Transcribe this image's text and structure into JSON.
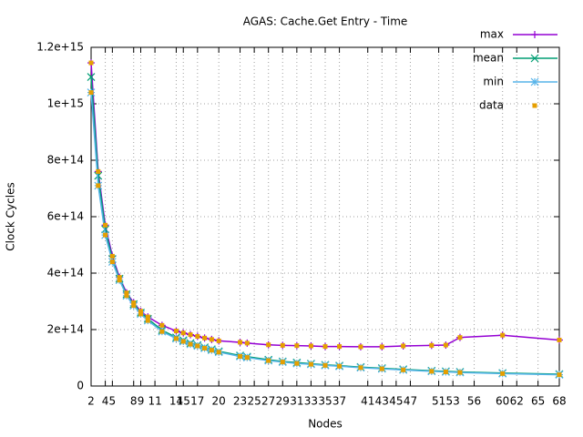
{
  "chart_data": {
    "type": "line",
    "title": "AGAS: Cache.Get Entry - Time",
    "xlabel": "Nodes",
    "ylabel": "Clock Cycles",
    "x": [
      2,
      3,
      4,
      5,
      6,
      7,
      8,
      9,
      10,
      12,
      14,
      15,
      16,
      17,
      18,
      19,
      20,
      23,
      24,
      27,
      29,
      31,
      33,
      35,
      37,
      40,
      43,
      46,
      50,
      52,
      54,
      60,
      68
    ],
    "series": [
      {
        "name": "max",
        "color": "#9400d3",
        "marker": "plus",
        "values": [
          1145000000000000.0,
          760000000000000.0,
          570000000000000.0,
          460000000000000.0,
          385000000000000.0,
          330000000000000.0,
          295000000000000.0,
          265000000000000.0,
          245000000000000.0,
          215000000000000.0,
          195000000000000.0,
          188000000000000.0,
          182000000000000.0,
          176000000000000.0,
          170000000000000.0,
          165000000000000.0,
          160000000000000.0,
          155000000000000.0,
          152000000000000.0,
          146000000000000.0,
          144000000000000.0,
          143000000000000.0,
          142000000000000.0,
          140000000000000.0,
          140000000000000.0,
          139000000000000.0,
          139000000000000.0,
          142000000000000.0,
          144000000000000.0,
          145000000000000.0,
          172000000000000.0,
          180000000000000.0,
          163000000000000.0
        ]
      },
      {
        "name": "mean",
        "color": "#009e73",
        "marker": "cross",
        "values": [
          1095000000000000.0,
          745000000000000.0,
          555000000000000.0,
          450000000000000.0,
          380000000000000.0,
          325000000000000.0,
          290000000000000.0,
          260000000000000.0,
          238000000000000.0,
          198000000000000.0,
          172000000000000.0,
          162000000000000.0,
          152000000000000.0,
          145000000000000.0,
          137000000000000.0,
          130000000000000.0,
          123000000000000.0,
          108000000000000.0,
          104000000000000.0,
          93000000000000.0,
          87000000000000.0,
          83000000000000.0,
          79000000000000.0,
          75000000000000.0,
          72000000000000.0,
          67000000000000.0,
          63000000000000.0,
          59000000000000.0,
          54000000000000.0,
          52000000000000.0,
          50000000000000.0,
          46000000000000.0,
          42000000000000.0
        ]
      },
      {
        "name": "min",
        "color": "#56b4e9",
        "marker": "star",
        "values": [
          1040000000000000.0,
          710000000000000.0,
          535000000000000.0,
          440000000000000.0,
          375000000000000.0,
          320000000000000.0,
          285000000000000.0,
          255000000000000.0,
          232000000000000.0,
          193000000000000.0,
          168000000000000.0,
          158000000000000.0,
          148000000000000.0,
          142000000000000.0,
          134000000000000.0,
          127000000000000.0,
          120000000000000.0,
          105000000000000.0,
          101000000000000.0,
          90000000000000.0,
          85000000000000.0,
          80000000000000.0,
          77000000000000.0,
          73000000000000.0,
          70000000000000.0,
          65000000000000.0,
          61000000000000.0,
          57000000000000.0,
          52000000000000.0,
          50000000000000.0,
          48000000000000.0,
          44000000000000.0,
          40000000000000.0
        ]
      }
    ],
    "points": {
      "name": "data",
      "color": "#e69f00",
      "x": [
        2,
        3,
        4,
        5,
        6,
        7,
        8,
        9,
        10,
        12,
        14,
        15,
        16,
        17,
        18,
        19,
        20,
        23,
        24,
        27,
        29,
        31,
        33,
        35,
        37,
        40,
        43,
        46,
        50,
        52,
        54,
        60,
        68,
        2,
        3,
        4,
        5,
        6,
        7,
        8,
        9,
        10,
        12,
        14,
        15,
        16,
        17,
        18,
        19,
        20,
        23,
        24,
        27,
        29,
        31,
        33,
        35,
        37,
        40,
        43,
        46,
        50,
        52,
        54,
        60,
        68
      ],
      "values": [
        1145000000000000.0,
        760000000000000.0,
        570000000000000.0,
        460000000000000.0,
        385000000000000.0,
        330000000000000.0,
        295000000000000.0,
        265000000000000.0,
        245000000000000.0,
        215000000000000.0,
        195000000000000.0,
        188000000000000.0,
        182000000000000.0,
        176000000000000.0,
        170000000000000.0,
        165000000000000.0,
        160000000000000.0,
        155000000000000.0,
        152000000000000.0,
        146000000000000.0,
        144000000000000.0,
        143000000000000.0,
        142000000000000.0,
        140000000000000.0,
        140000000000000.0,
        139000000000000.0,
        139000000000000.0,
        142000000000000.0,
        144000000000000.0,
        145000000000000.0,
        172000000000000.0,
        180000000000000.0,
        163000000000000.0,
        1040000000000000.0,
        710000000000000.0,
        535000000000000.0,
        440000000000000.0,
        375000000000000.0,
        320000000000000.0,
        285000000000000.0,
        255000000000000.0,
        232000000000000.0,
        193000000000000.0,
        168000000000000.0,
        158000000000000.0,
        148000000000000.0,
        142000000000000.0,
        134000000000000.0,
        127000000000000.0,
        120000000000000.0,
        105000000000000.0,
        101000000000000.0,
        90000000000000.0,
        85000000000000.0,
        80000000000000.0,
        77000000000000.0,
        73000000000000.0,
        70000000000000.0,
        65000000000000.0,
        61000000000000.0,
        57000000000000.0,
        52000000000000.0,
        50000000000000.0,
        48000000000000.0,
        44000000000000.0,
        40000000000000.0
      ]
    },
    "xlim": [
      2,
      68
    ],
    "xticks": [
      2,
      4,
      5,
      8,
      9,
      11,
      14,
      15,
      17,
      20,
      23,
      25,
      27,
      29,
      31,
      33,
      35,
      37,
      41,
      43,
      45,
      47,
      51,
      53,
      56,
      60,
      62,
      65,
      68
    ],
    "ylim": [
      0,
      1200000000000000.0
    ],
    "yticks": [
      0,
      {
        "value": 200000000000000.0,
        "label": "2e+14"
      },
      {
        "value": 400000000000000.0,
        "label": "4e+14"
      },
      {
        "value": 600000000000000.0,
        "label": "6e+14"
      },
      {
        "value": 800000000000000.0,
        "label": "8e+14"
      },
      {
        "value": 1000000000000000.0,
        "label": "1e+15"
      },
      {
        "value": 1200000000000000.0,
        "label": "1.2e+15"
      }
    ],
    "grid": true,
    "legend": "top-right"
  }
}
